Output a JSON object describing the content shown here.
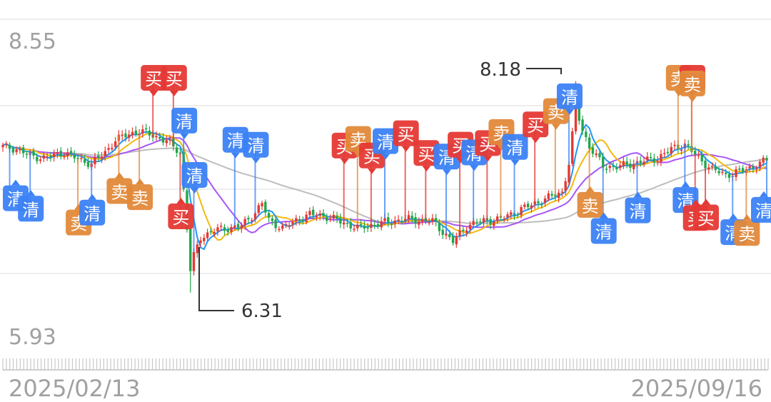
{
  "chart_data": {
    "type": "candlestick",
    "y_axis": {
      "top_label": "8.55",
      "bottom_label": "5.93",
      "max": 8.55,
      "min": 5.93
    },
    "x_axis": {
      "start_label": "2025/02/13",
      "end_label": "2025/09/16"
    },
    "annotations": {
      "high": {
        "label": "8.18",
        "value": 8.18,
        "bar": 168
      },
      "low": {
        "label": "6.31",
        "value": 6.31,
        "bar": 55
      }
    },
    "bar_count": 225,
    "ohlc_keypoints": [
      [
        0,
        7.6
      ],
      [
        4,
        7.58
      ],
      [
        8,
        7.52
      ],
      [
        12,
        7.5
      ],
      [
        18,
        7.55
      ],
      [
        22,
        7.49
      ],
      [
        26,
        7.45
      ],
      [
        30,
        7.55
      ],
      [
        33,
        7.66
      ],
      [
        36,
        7.7
      ],
      [
        40,
        7.74
      ],
      [
        44,
        7.7
      ],
      [
        48,
        7.65
      ],
      [
        52,
        7.55
      ],
      [
        55,
        6.55
      ],
      [
        58,
        6.8
      ],
      [
        62,
        6.86
      ],
      [
        66,
        6.88
      ],
      [
        70,
        6.9
      ],
      [
        74,
        7.02
      ],
      [
        76,
        7.1
      ],
      [
        78,
        6.95
      ],
      [
        82,
        6.88
      ],
      [
        86,
        6.95
      ],
      [
        90,
        7.0
      ],
      [
        94,
        6.99
      ],
      [
        98,
        6.95
      ],
      [
        104,
        6.88
      ],
      [
        110,
        6.92
      ],
      [
        118,
        6.96
      ],
      [
        126,
        6.94
      ],
      [
        130,
        6.82
      ],
      [
        132,
        6.76
      ],
      [
        136,
        6.9
      ],
      [
        140,
        6.94
      ],
      [
        146,
        6.96
      ],
      [
        150,
        7.02
      ],
      [
        156,
        7.1
      ],
      [
        160,
        7.15
      ],
      [
        164,
        7.2
      ],
      [
        166,
        7.45
      ],
      [
        168,
        7.95
      ],
      [
        170,
        7.75
      ],
      [
        172,
        7.6
      ],
      [
        176,
        7.43
      ],
      [
        180,
        7.42
      ],
      [
        186,
        7.46
      ],
      [
        192,
        7.5
      ],
      [
        196,
        7.58
      ],
      [
        200,
        7.62
      ],
      [
        204,
        7.5
      ],
      [
        208,
        7.4
      ],
      [
        212,
        7.35
      ],
      [
        218,
        7.4
      ],
      [
        224,
        7.48
      ]
    ],
    "series": [
      {
        "key": "ma5",
        "color": "#2196f3"
      },
      {
        "key": "ma10",
        "color": "#f2b90f"
      },
      {
        "key": "ma20",
        "color": "#a855f7"
      },
      {
        "key": "ma60",
        "color": "#bdbdbd"
      }
    ],
    "signal_labels": {
      "buy": "买",
      "sell": "卖",
      "clear": "清"
    },
    "signals": [
      {
        "t": "clear",
        "bar": 2,
        "pos": "below"
      },
      {
        "t": "clear",
        "bar": 8,
        "pos": "below"
      },
      {
        "t": "sell",
        "bar": 22,
        "pos": "below"
      },
      {
        "t": "clear",
        "bar": 26,
        "pos": "below"
      },
      {
        "t": "sell",
        "bar": 34,
        "pos": "below"
      },
      {
        "t": "sell",
        "bar": 40,
        "pos": "below"
      },
      {
        "t": "buy",
        "bar": 44,
        "pos": "above"
      },
      {
        "t": "buy",
        "bar": 50,
        "pos": "above"
      },
      {
        "t": "buy",
        "bar": 52,
        "pos": "below"
      },
      {
        "t": "clear",
        "bar": 53,
        "pos": "above"
      },
      {
        "t": "clear",
        "bar": 56,
        "pos": "above"
      },
      {
        "t": "clear",
        "bar": 68,
        "pos": "above"
      },
      {
        "t": "clear",
        "bar": 74,
        "pos": "above"
      },
      {
        "t": "buy",
        "bar": 100,
        "pos": "above"
      },
      {
        "t": "sell",
        "bar": 104,
        "pos": "above"
      },
      {
        "t": "buy",
        "bar": 108,
        "pos": "above"
      },
      {
        "t": "clear",
        "bar": 112,
        "pos": "above"
      },
      {
        "t": "buy",
        "bar": 118,
        "pos": "above"
      },
      {
        "t": "buy",
        "bar": 124,
        "pos": "above"
      },
      {
        "t": "clear",
        "bar": 130,
        "pos": "above"
      },
      {
        "t": "buy",
        "bar": 134,
        "pos": "above"
      },
      {
        "t": "clear",
        "bar": 138,
        "pos": "above"
      },
      {
        "t": "buy",
        "bar": 142,
        "pos": "above"
      },
      {
        "t": "sell",
        "bar": 146,
        "pos": "above"
      },
      {
        "t": "clear",
        "bar": 150,
        "pos": "above"
      },
      {
        "t": "buy",
        "bar": 156,
        "pos": "above"
      },
      {
        "t": "sell",
        "bar": 162,
        "pos": "above"
      },
      {
        "t": "clear",
        "bar": 166,
        "pos": "above"
      },
      {
        "t": "sell",
        "bar": 172,
        "pos": "below"
      },
      {
        "t": "clear",
        "bar": 176,
        "pos": "below"
      },
      {
        "t": "clear",
        "bar": 186,
        "pos": "below"
      },
      {
        "t": "sell",
        "bar": 198,
        "pos": "above"
      },
      {
        "t": "buy",
        "bar": 202,
        "pos": "above"
      },
      {
        "t": "sell",
        "bar": 202,
        "pos": "above"
      },
      {
        "t": "clear",
        "bar": 200,
        "pos": "below"
      },
      {
        "t": "buy",
        "bar": 203,
        "pos": "below"
      },
      {
        "t": "buy",
        "bar": 206,
        "pos": "below"
      },
      {
        "t": "clear",
        "bar": 214,
        "pos": "below"
      },
      {
        "t": "sell",
        "bar": 218,
        "pos": "below"
      },
      {
        "t": "clear",
        "bar": 224,
        "pos": "below"
      }
    ],
    "colors": {
      "up": "#e53935",
      "down": "#23a64b",
      "buy": "#e53935",
      "sell": "#e1893a",
      "clear": "#3b82f6",
      "grid": "#eeeeee",
      "axis_text": "#a0a0a0",
      "annotation": "#333333"
    }
  }
}
